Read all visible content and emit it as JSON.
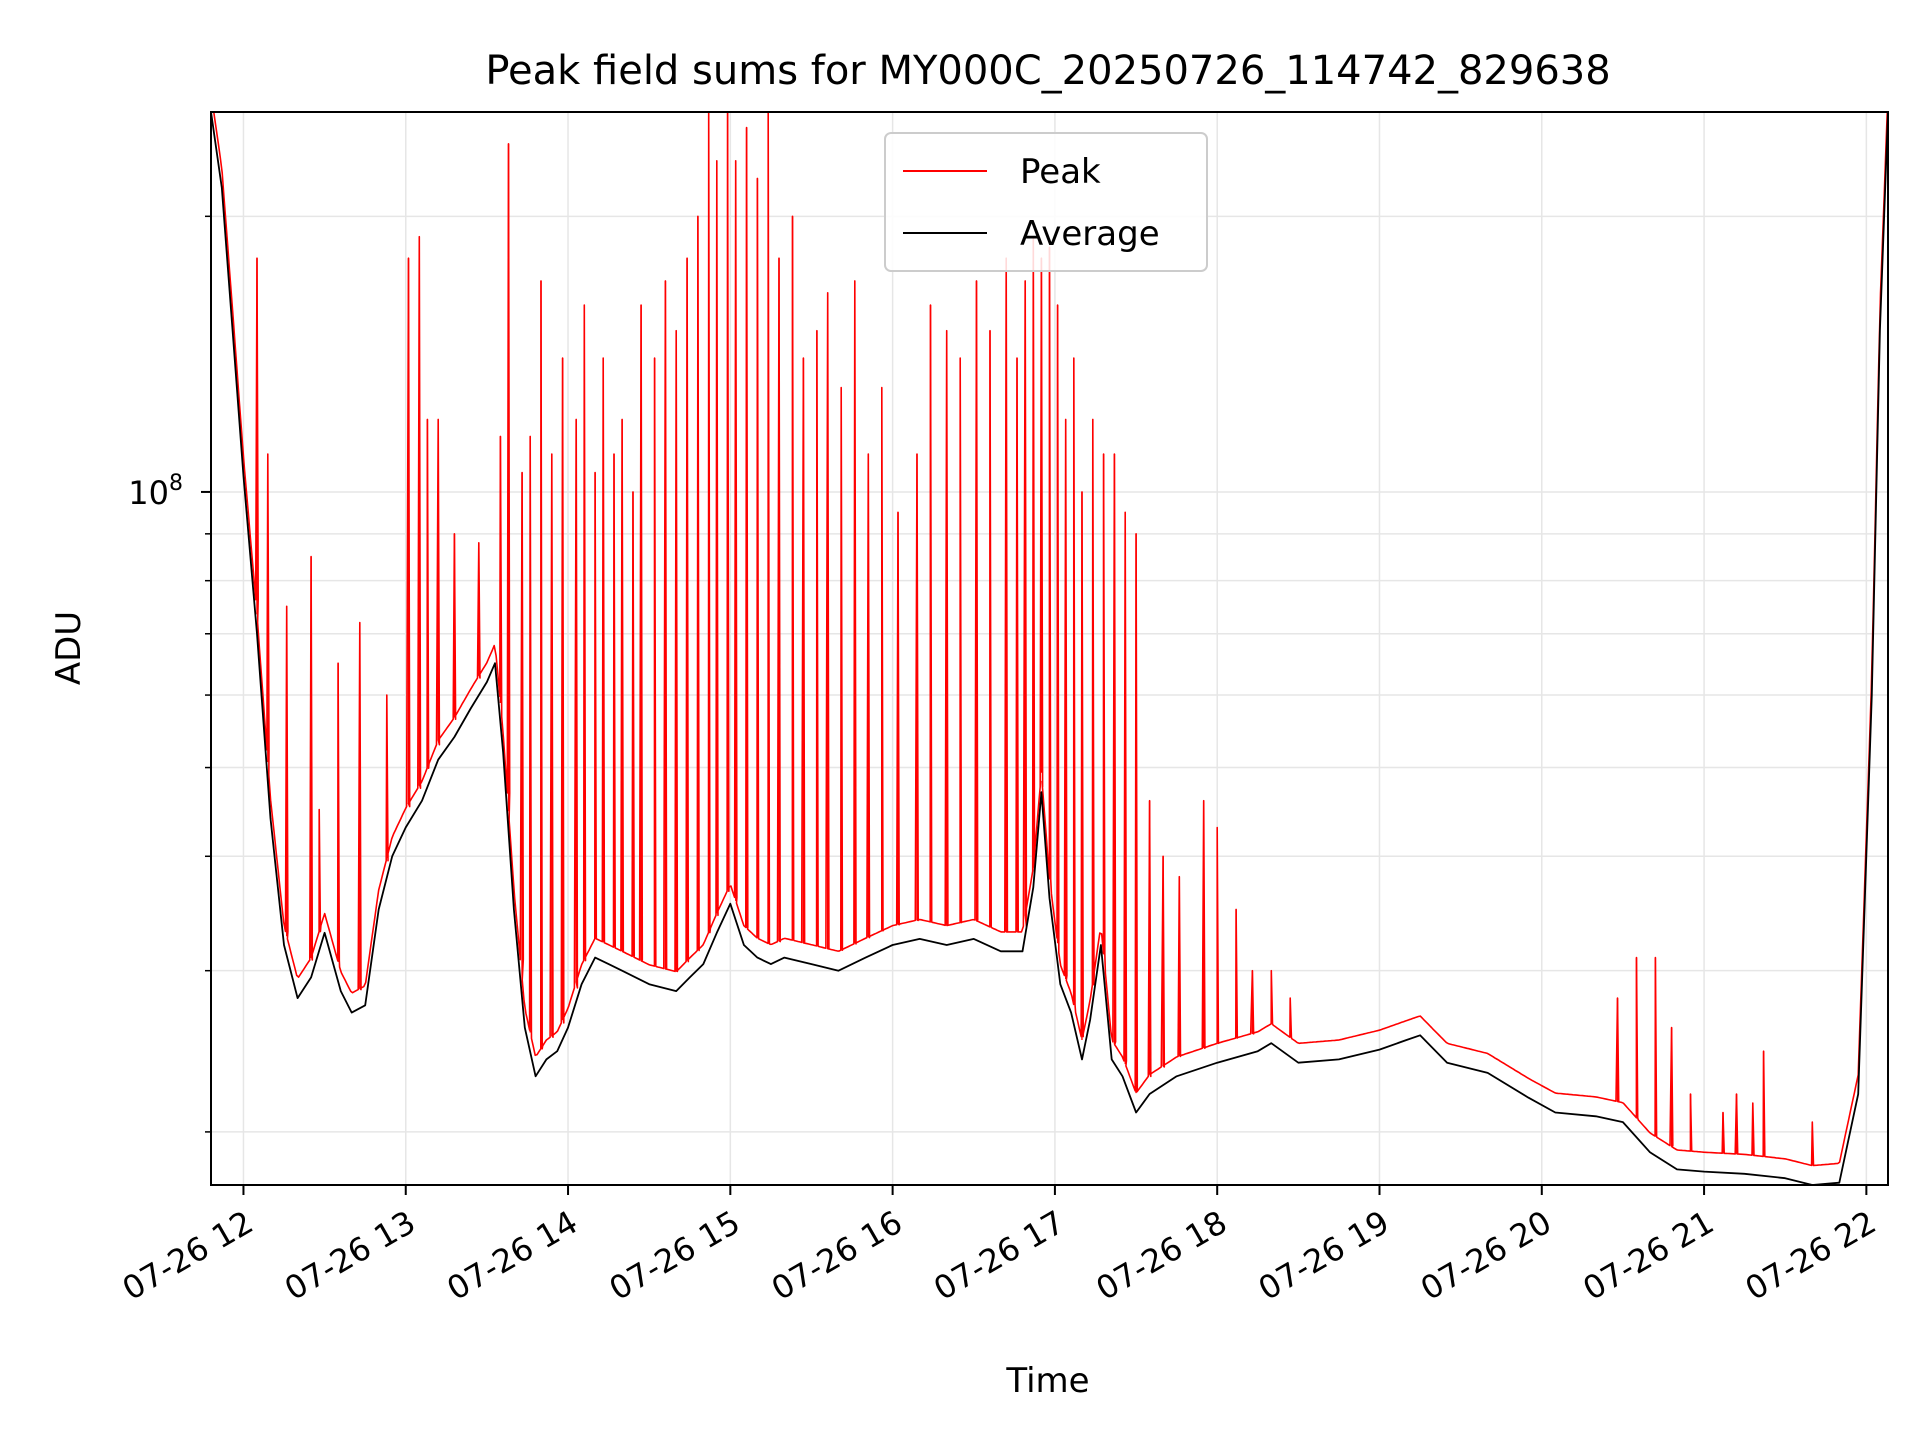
{
  "chart_data": {
    "type": "line",
    "title": "Peak field sums for MY000C_20250726_114742_829638",
    "xlabel": "Time",
    "ylabel": "ADU",
    "yscale": "log",
    "xlim": [
      "2025-07-26T11:48",
      "2025-07-26T22:08"
    ],
    "ylim": [
      17500000,
      260000000
    ],
    "x_ticks": [
      {
        "t": "2025-07-26T12:00",
        "label": "07-26 12"
      },
      {
        "t": "2025-07-26T13:00",
        "label": "07-26 13"
      },
      {
        "t": "2025-07-26T14:00",
        "label": "07-26 14"
      },
      {
        "t": "2025-07-26T15:00",
        "label": "07-26 15"
      },
      {
        "t": "2025-07-26T16:00",
        "label": "07-26 16"
      },
      {
        "t": "2025-07-26T17:00",
        "label": "07-26 17"
      },
      {
        "t": "2025-07-26T18:00",
        "label": "07-26 18"
      },
      {
        "t": "2025-07-26T19:00",
        "label": "07-26 19"
      },
      {
        "t": "2025-07-26T20:00",
        "label": "07-26 20"
      },
      {
        "t": "2025-07-26T21:00",
        "label": "07-26 21"
      },
      {
        "t": "2025-07-26T22:00",
        "label": "07-26 22"
      }
    ],
    "y_major_ticks": [
      {
        "value": 100000000,
        "label": "10",
        "exponent": "8"
      }
    ],
    "y_minor_ticks": [
      20000000,
      30000000,
      40000000,
      50000000,
      60000000,
      70000000,
      80000000,
      90000000,
      200000000
    ],
    "grid": true,
    "legend": {
      "placement": "top-center",
      "entries": [
        "Peak",
        "Average"
      ]
    },
    "series": [
      {
        "name": "Average",
        "color": "#000000",
        "x": [
          "2025-07-26T11:48",
          "2025-07-26T11:52",
          "2025-07-26T11:56",
          "2025-07-26T12:00",
          "2025-07-26T12:05",
          "2025-07-26T12:10",
          "2025-07-26T12:15",
          "2025-07-26T12:20",
          "2025-07-26T12:25",
          "2025-07-26T12:30",
          "2025-07-26T12:36",
          "2025-07-26T12:40",
          "2025-07-26T12:45",
          "2025-07-26T12:50",
          "2025-07-26T12:55",
          "2025-07-26T13:00",
          "2025-07-26T13:06",
          "2025-07-26T13:12",
          "2025-07-26T13:18",
          "2025-07-26T13:24",
          "2025-07-26T13:30",
          "2025-07-26T13:33",
          "2025-07-26T13:36",
          "2025-07-26T13:40",
          "2025-07-26T13:44",
          "2025-07-26T13:48",
          "2025-07-26T13:52",
          "2025-07-26T13:56",
          "2025-07-26T14:00",
          "2025-07-26T14:05",
          "2025-07-26T14:10",
          "2025-07-26T14:15",
          "2025-07-26T14:20",
          "2025-07-26T14:30",
          "2025-07-26T14:40",
          "2025-07-26T14:45",
          "2025-07-26T14:50",
          "2025-07-26T14:55",
          "2025-07-26T15:00",
          "2025-07-26T15:05",
          "2025-07-26T15:10",
          "2025-07-26T15:15",
          "2025-07-26T15:20",
          "2025-07-26T15:30",
          "2025-07-26T15:40",
          "2025-07-26T15:50",
          "2025-07-26T16:00",
          "2025-07-26T16:10",
          "2025-07-26T16:20",
          "2025-07-26T16:30",
          "2025-07-26T16:40",
          "2025-07-26T16:48",
          "2025-07-26T16:52",
          "2025-07-26T16:55",
          "2025-07-26T16:58",
          "2025-07-26T17:02",
          "2025-07-26T17:06",
          "2025-07-26T17:10",
          "2025-07-26T17:13",
          "2025-07-26T17:17",
          "2025-07-26T17:21",
          "2025-07-26T17:25",
          "2025-07-26T17:30",
          "2025-07-26T17:35",
          "2025-07-26T17:45",
          "2025-07-26T18:00",
          "2025-07-26T18:15",
          "2025-07-26T18:20",
          "2025-07-26T18:30",
          "2025-07-26T18:45",
          "2025-07-26T19:00",
          "2025-07-26T19:10",
          "2025-07-26T19:15",
          "2025-07-26T19:25",
          "2025-07-26T19:40",
          "2025-07-26T19:55",
          "2025-07-26T20:05",
          "2025-07-26T20:20",
          "2025-07-26T20:30",
          "2025-07-26T20:40",
          "2025-07-26T20:50",
          "2025-07-26T21:00",
          "2025-07-26T21:15",
          "2025-07-26T21:30",
          "2025-07-26T21:40",
          "2025-07-26T21:50",
          "2025-07-26T21:57",
          "2025-07-26T22:02",
          "2025-07-26T22:05",
          "2025-07-26T22:08"
        ],
        "y": [
          260000000,
          215000000,
          150000000,
          104000000,
          70000000,
          44000000,
          32000000,
          28000000,
          29500000,
          33000000,
          28500000,
          27000000,
          27500000,
          35000000,
          40000000,
          43000000,
          46000000,
          51000000,
          54000000,
          58000000,
          62000000,
          65000000,
          52000000,
          35000000,
          26000000,
          23000000,
          24000000,
          24500000,
          26000000,
          29000000,
          31000000,
          30500000,
          30000000,
          29000000,
          28500000,
          29500000,
          30500000,
          33000000,
          35500000,
          32000000,
          31000000,
          30500000,
          31000000,
          30500000,
          30000000,
          31000000,
          32000000,
          32500000,
          32000000,
          32500000,
          31500000,
          31500000,
          37000000,
          47000000,
          36000000,
          29000000,
          27000000,
          24000000,
          26500000,
          32000000,
          24000000,
          23000000,
          21000000,
          22000000,
          23000000,
          23800000,
          24500000,
          25000000,
          23800000,
          24000000,
          24600000,
          25200000,
          25500000,
          23800000,
          23200000,
          21800000,
          21000000,
          20800000,
          20500000,
          19000000,
          18200000,
          18100000,
          18000000,
          17800000,
          17500000,
          17600000,
          22000000,
          60000000,
          150000000,
          260000000
        ]
      },
      {
        "name": "Peak",
        "color": "#ff0000",
        "note_baseline_multiplier": 1.05,
        "spikes": [
          {
            "t": "2025-07-26T12:05",
            "v": 180000000
          },
          {
            "t": "2025-07-26T12:09",
            "v": 110000000
          },
          {
            "t": "2025-07-26T12:16",
            "v": 75000000
          },
          {
            "t": "2025-07-26T12:25",
            "v": 85000000
          },
          {
            "t": "2025-07-26T12:28",
            "v": 45000000
          },
          {
            "t": "2025-07-26T12:35",
            "v": 65000000
          },
          {
            "t": "2025-07-26T12:43",
            "v": 72000000
          },
          {
            "t": "2025-07-26T12:53",
            "v": 60000000
          },
          {
            "t": "2025-07-26T13:01",
            "v": 180000000
          },
          {
            "t": "2025-07-26T13:05",
            "v": 190000000
          },
          {
            "t": "2025-07-26T13:08",
            "v": 120000000
          },
          {
            "t": "2025-07-26T13:12",
            "v": 120000000
          },
          {
            "t": "2025-07-26T13:18",
            "v": 90000000
          },
          {
            "t": "2025-07-26T13:27",
            "v": 88000000
          },
          {
            "t": "2025-07-26T13:35",
            "v": 115000000
          },
          {
            "t": "2025-07-26T13:38",
            "v": 240000000
          },
          {
            "t": "2025-07-26T13:43",
            "v": 105000000
          },
          {
            "t": "2025-07-26T13:46",
            "v": 115000000
          },
          {
            "t": "2025-07-26T13:50",
            "v": 170000000
          },
          {
            "t": "2025-07-26T13:54",
            "v": 110000000
          },
          {
            "t": "2025-07-26T13:58",
            "v": 140000000
          },
          {
            "t": "2025-07-26T14:03",
            "v": 120000000
          },
          {
            "t": "2025-07-26T14:06",
            "v": 160000000
          },
          {
            "t": "2025-07-26T14:10",
            "v": 105000000
          },
          {
            "t": "2025-07-26T14:13",
            "v": 140000000
          },
          {
            "t": "2025-07-26T14:17",
            "v": 110000000
          },
          {
            "t": "2025-07-26T14:20",
            "v": 120000000
          },
          {
            "t": "2025-07-26T14:24",
            "v": 100000000
          },
          {
            "t": "2025-07-26T14:27",
            "v": 160000000
          },
          {
            "t": "2025-07-26T14:32",
            "v": 140000000
          },
          {
            "t": "2025-07-26T14:36",
            "v": 170000000
          },
          {
            "t": "2025-07-26T14:40",
            "v": 150000000
          },
          {
            "t": "2025-07-26T14:44",
            "v": 180000000
          },
          {
            "t": "2025-07-26T14:48",
            "v": 200000000
          },
          {
            "t": "2025-07-26T14:52",
            "v": 260000000
          },
          {
            "t": "2025-07-26T14:55",
            "v": 230000000
          },
          {
            "t": "2025-07-26T14:59",
            "v": 260000000
          },
          {
            "t": "2025-07-26T15:02",
            "v": 230000000
          },
          {
            "t": "2025-07-26T15:06",
            "v": 250000000
          },
          {
            "t": "2025-07-26T15:10",
            "v": 220000000
          },
          {
            "t": "2025-07-26T15:14",
            "v": 260000000
          },
          {
            "t": "2025-07-26T15:18",
            "v": 180000000
          },
          {
            "t": "2025-07-26T15:23",
            "v": 200000000
          },
          {
            "t": "2025-07-26T15:27",
            "v": 140000000
          },
          {
            "t": "2025-07-26T15:32",
            "v": 150000000
          },
          {
            "t": "2025-07-26T15:36",
            "v": 165000000
          },
          {
            "t": "2025-07-26T15:41",
            "v": 130000000
          },
          {
            "t": "2025-07-26T15:46",
            "v": 170000000
          },
          {
            "t": "2025-07-26T15:51",
            "v": 110000000
          },
          {
            "t": "2025-07-26T15:56",
            "v": 130000000
          },
          {
            "t": "2025-07-26T16:02",
            "v": 95000000
          },
          {
            "t": "2025-07-26T16:09",
            "v": 110000000
          },
          {
            "t": "2025-07-26T16:14",
            "v": 160000000
          },
          {
            "t": "2025-07-26T16:20",
            "v": 150000000
          },
          {
            "t": "2025-07-26T16:25",
            "v": 140000000
          },
          {
            "t": "2025-07-26T16:31",
            "v": 170000000
          },
          {
            "t": "2025-07-26T16:36",
            "v": 150000000
          },
          {
            "t": "2025-07-26T16:42",
            "v": 180000000
          },
          {
            "t": "2025-07-26T16:46",
            "v": 140000000
          },
          {
            "t": "2025-07-26T16:49",
            "v": 170000000
          },
          {
            "t": "2025-07-26T16:52",
            "v": 190000000
          },
          {
            "t": "2025-07-26T16:55",
            "v": 180000000
          },
          {
            "t": "2025-07-26T16:58",
            "v": 185000000
          },
          {
            "t": "2025-07-26T17:01",
            "v": 160000000
          },
          {
            "t": "2025-07-26T17:04",
            "v": 120000000
          },
          {
            "t": "2025-07-26T17:07",
            "v": 140000000
          },
          {
            "t": "2025-07-26T17:10",
            "v": 100000000
          },
          {
            "t": "2025-07-26T17:14",
            "v": 120000000
          },
          {
            "t": "2025-07-26T17:18",
            "v": 110000000
          },
          {
            "t": "2025-07-26T17:22",
            "v": 110000000
          },
          {
            "t": "2025-07-26T17:26",
            "v": 95000000
          },
          {
            "t": "2025-07-26T17:30",
            "v": 90000000
          },
          {
            "t": "2025-07-26T17:35",
            "v": 46000000
          },
          {
            "t": "2025-07-26T17:40",
            "v": 40000000
          },
          {
            "t": "2025-07-26T17:46",
            "v": 38000000
          },
          {
            "t": "2025-07-26T17:55",
            "v": 46000000
          },
          {
            "t": "2025-07-26T18:00",
            "v": 43000000
          },
          {
            "t": "2025-07-26T18:07",
            "v": 35000000
          },
          {
            "t": "2025-07-26T18:13",
            "v": 30000000
          },
          {
            "t": "2025-07-26T18:20",
            "v": 30000000
          },
          {
            "t": "2025-07-26T18:27",
            "v": 28000000
          },
          {
            "t": "2025-07-26T20:28",
            "v": 28000000
          },
          {
            "t": "2025-07-26T20:35",
            "v": 31000000
          },
          {
            "t": "2025-07-26T20:42",
            "v": 31000000
          },
          {
            "t": "2025-07-26T20:48",
            "v": 26000000
          },
          {
            "t": "2025-07-26T20:55",
            "v": 22000000
          },
          {
            "t": "2025-07-26T21:07",
            "v": 21000000
          },
          {
            "t": "2025-07-26T21:12",
            "v": 22000000
          },
          {
            "t": "2025-07-26T21:18",
            "v": 21500000
          },
          {
            "t": "2025-07-26T21:22",
            "v": 24500000
          },
          {
            "t": "2025-07-26T21:40",
            "v": 20500000
          }
        ]
      }
    ]
  }
}
